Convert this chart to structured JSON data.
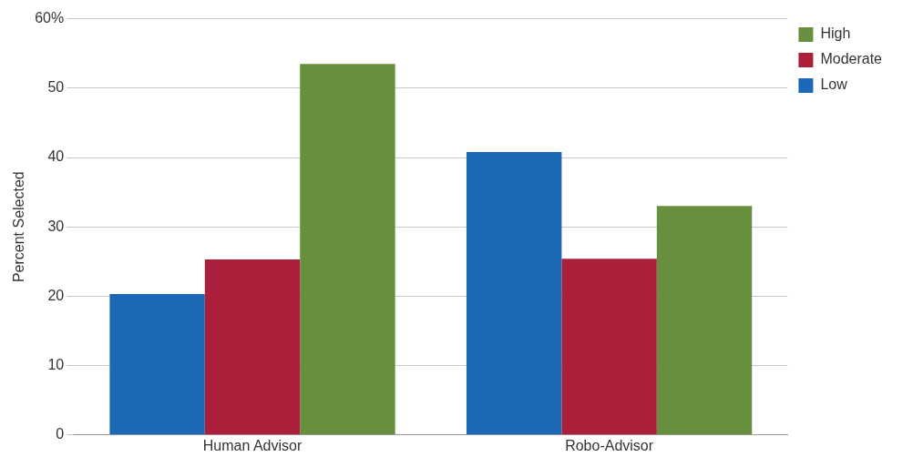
{
  "chart_data": {
    "type": "bar",
    "ylabel": "Percent Selected",
    "categories": [
      "Human Advisor",
      "Robo-Advisor"
    ],
    "series": [
      {
        "name": "Low",
        "color": "#1c68b4",
        "values": [
          20.3,
          40.8
        ]
      },
      {
        "name": "Moderate",
        "color": "#ab1f3a",
        "values": [
          25.3,
          25.4
        ]
      },
      {
        "name": "High",
        "color": "#688f3d",
        "values": [
          53.5,
          33.0
        ]
      }
    ],
    "ylim": [
      0,
      60
    ],
    "yticks": [
      0,
      10,
      20,
      30,
      40,
      50,
      {
        "value": 60,
        "label": "60%"
      }
    ],
    "grid": "y",
    "legend": "top right"
  }
}
